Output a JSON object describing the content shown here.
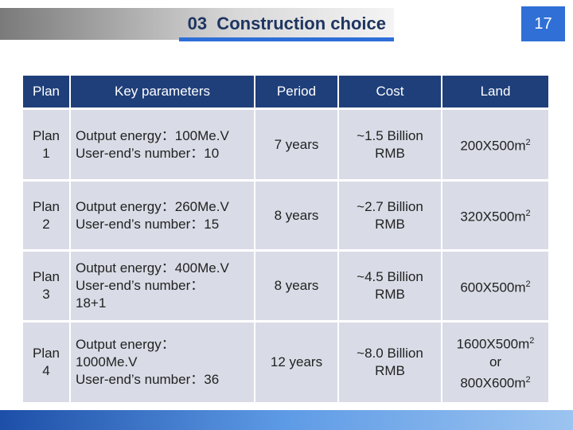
{
  "header": {
    "title": "03  Construction choice",
    "page_number": "17"
  },
  "table": {
    "columns": [
      "Plan",
      "Key parameters",
      "Period",
      "Cost",
      "Land"
    ],
    "rows": [
      {
        "plan": [
          "Plan",
          "1"
        ],
        "params": [
          "Output energy：100Me.V",
          "User-end’s number：10"
        ],
        "period": [
          "7 years"
        ],
        "cost": [
          "~1.5 Billion",
          "RMB"
        ],
        "land": [
          {
            "text": "200X500m",
            "sup": "2"
          }
        ]
      },
      {
        "plan": [
          "Plan",
          "2"
        ],
        "params": [
          "Output energy：260Me.V",
          "User-end’s number：15"
        ],
        "period": [
          "8 years"
        ],
        "cost": [
          "~2.7 Billion",
          "RMB"
        ],
        "land": [
          {
            "text": "320X500m",
            "sup": "2"
          }
        ]
      },
      {
        "plan": [
          "Plan",
          "3"
        ],
        "params": [
          "Output energy：400Me.V",
          "User-end’s number：",
          "18+1"
        ],
        "period": [
          "8 years"
        ],
        "cost": [
          "~4.5 Billion",
          "RMB"
        ],
        "land": [
          {
            "text": "600X500m",
            "sup": "2"
          }
        ]
      },
      {
        "plan": [
          "Plan",
          "4"
        ],
        "params": [
          "Output energy：",
          "1000Me.V",
          "User-end’s number：36"
        ],
        "period": [
          "12 years"
        ],
        "cost": [
          "~8.0 Billion",
          "RMB"
        ],
        "land": [
          {
            "text": "1600X500m",
            "sup": "2"
          },
          {
            "text": "or"
          },
          {
            "text": "800X600m",
            "sup": "2"
          }
        ]
      }
    ]
  }
}
